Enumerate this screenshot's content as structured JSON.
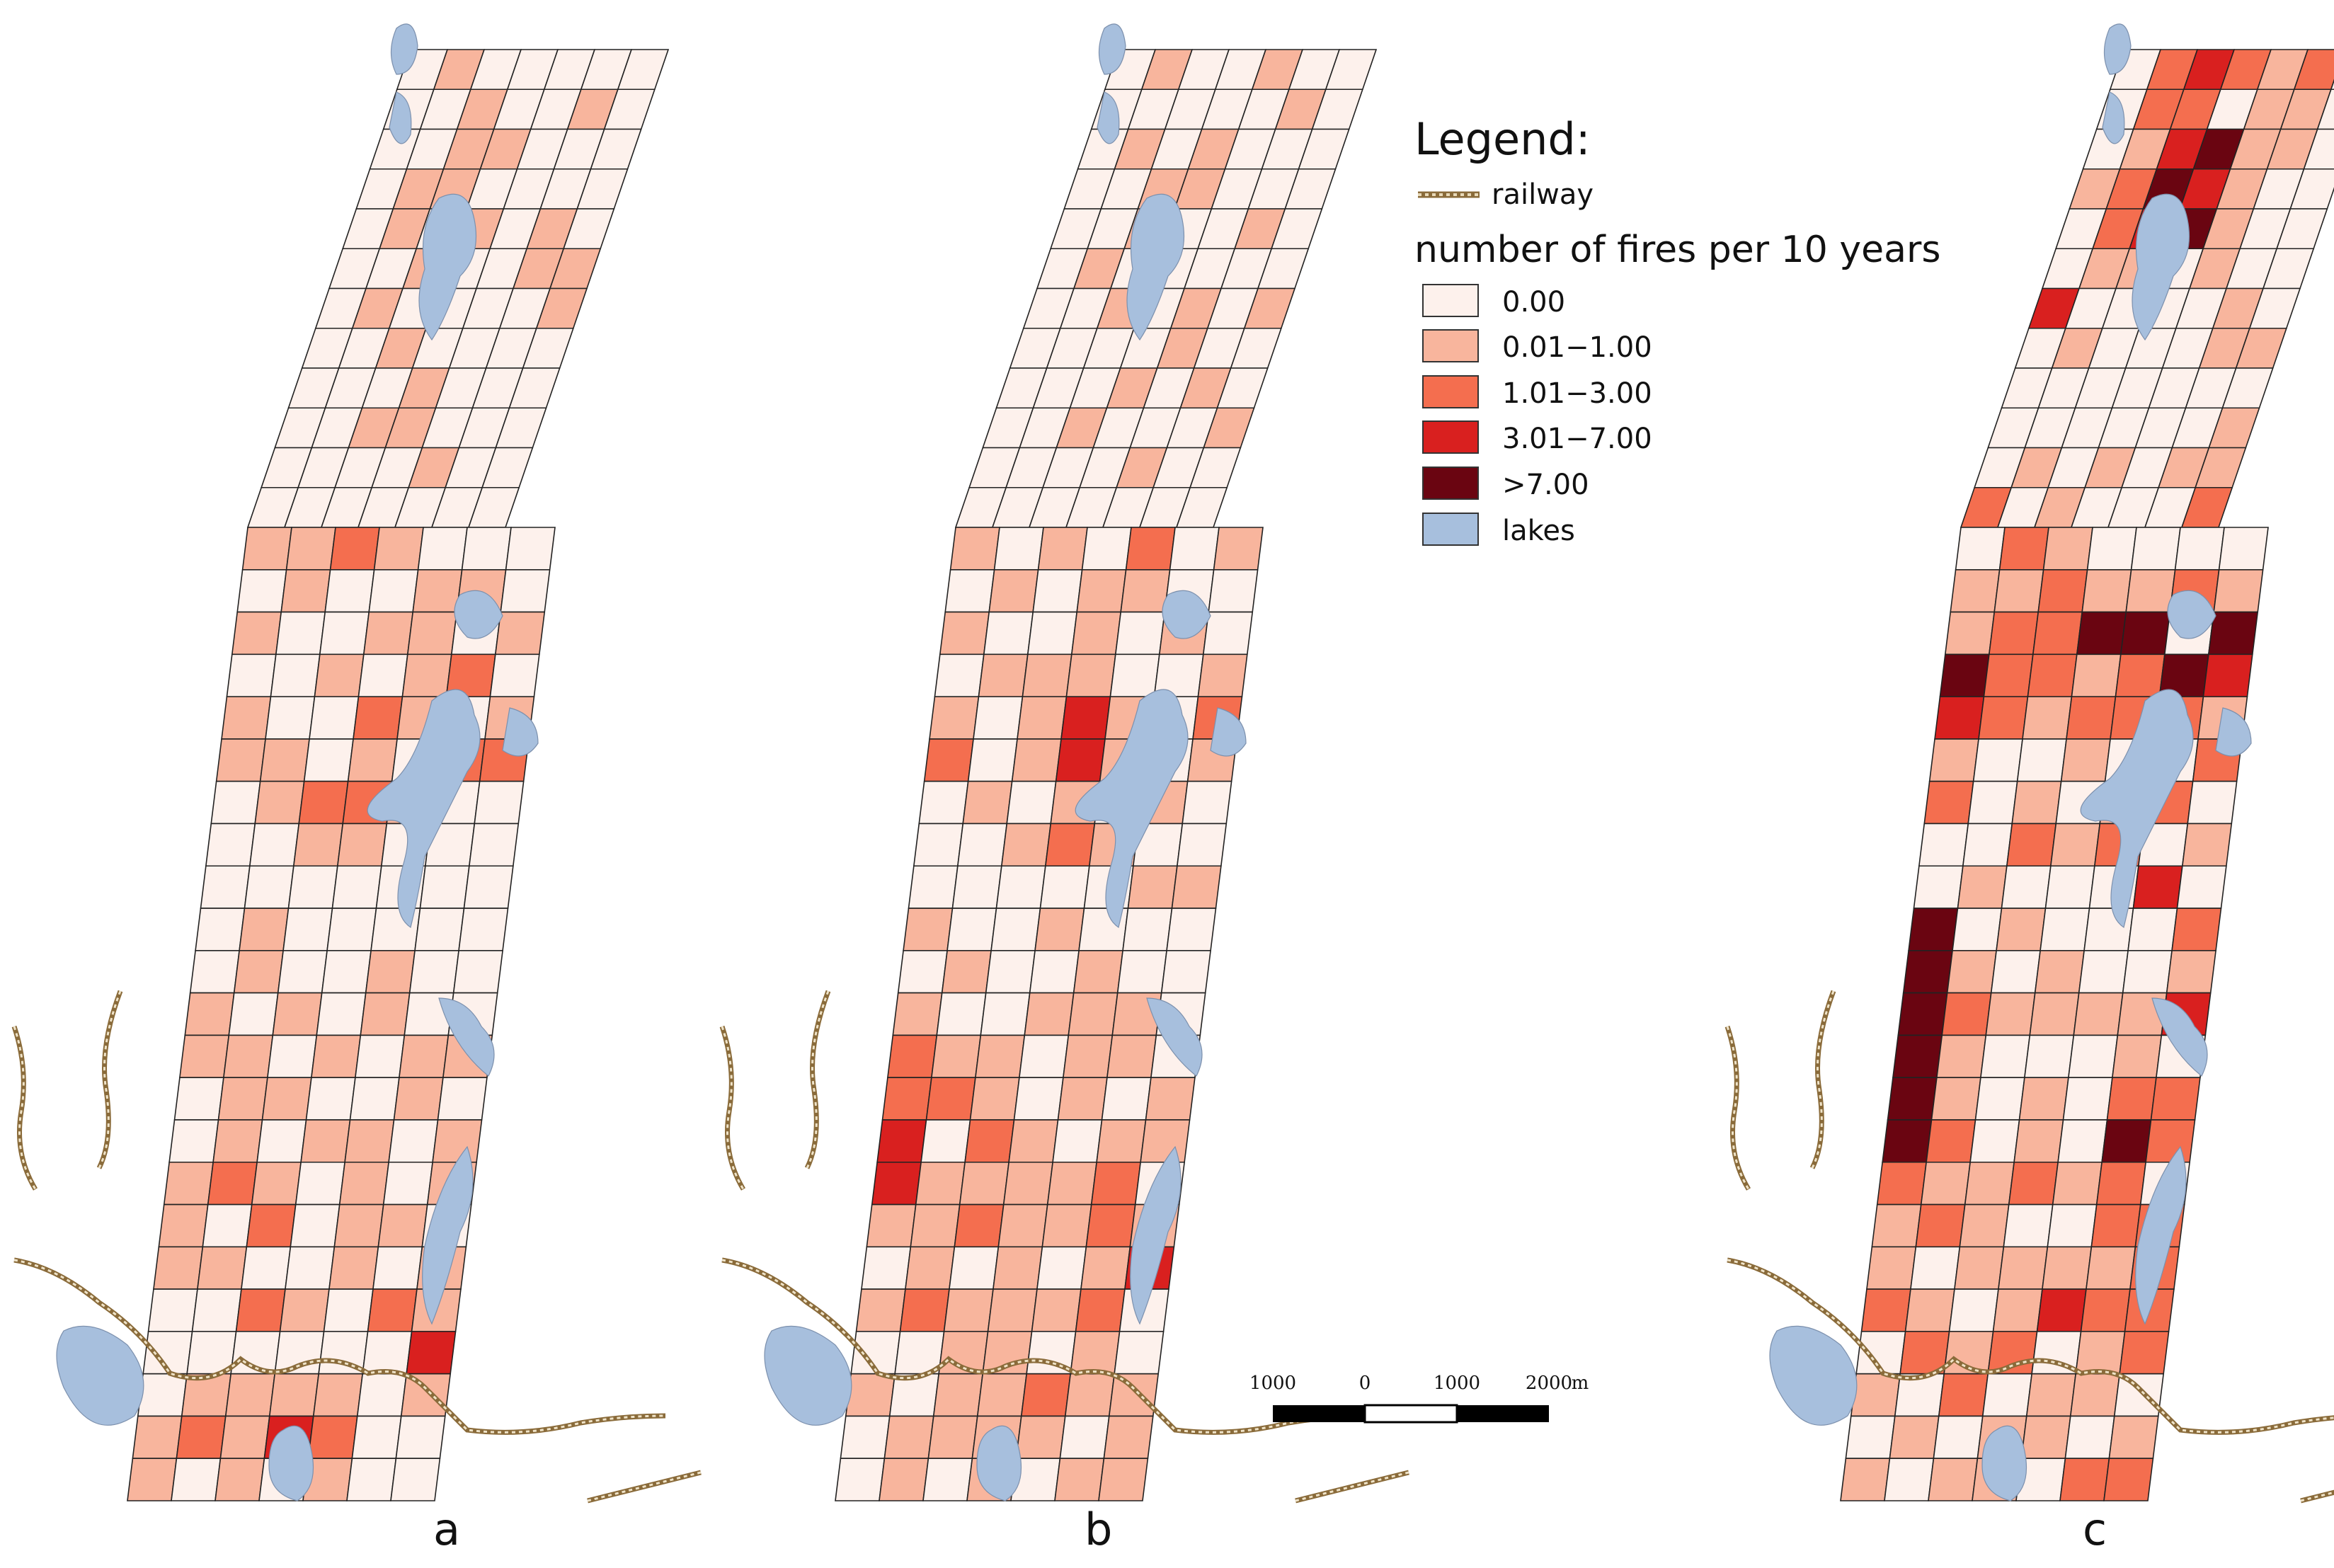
{
  "legend": {
    "title": "Legend:",
    "railway_label": "railway",
    "subtitle": "number of fires per 10 years",
    "classes": [
      {
        "label": "0.00",
        "color": "#fdf1ec"
      },
      {
        "label": "0.01−1.00",
        "color": "#f8b59d"
      },
      {
        "label": "1.01−3.00",
        "color": "#f46e4f"
      },
      {
        "label": "3.01−7.00",
        "color": "#d9201f"
      },
      {
        "label": ">7.00",
        "color": "#6a0511"
      }
    ],
    "lakes_label": "lakes",
    "lakes_color": "#a7bfdd",
    "railway_color": "#8a6b3a"
  },
  "scale_bar": {
    "labels": [
      "1000",
      "0",
      "1000",
      "2000"
    ],
    "unit": "m"
  },
  "panels": [
    {
      "label": "a",
      "rows": [
        "0100000",
        "0010010",
        "0011000",
        "0110000",
        "0101010",
        "0010011",
        "0100001",
        "0010000",
        "0001000",
        "0011000",
        "0000100",
        "0000000",
        "1121000",
        "0100110",
        "1001101",
        "0010120",
        "1002101",
        "1101022",
        "0122100",
        "0011000",
        "0000000",
        "0100000",
        "0100100",
        "1010100",
        "1101011",
        "0110010",
        "0101101",
        "1210101",
        "1020110",
        "1100101",
        "0021021",
        "0000003",
        "0111101",
        "1213200",
        "1010100"
      ]
    },
    {
      "label": "b",
      "rows": [
        "0100100",
        "0000010",
        "0101000",
        "0011000",
        "0010010",
        "0100000",
        "0010101",
        "0000100",
        "0001010",
        "0010001",
        "0000100",
        "0000000",
        "1010201",
        "0101100",
        "1001010",
        "0111001",
        "1013102",
        "2013101",
        "0101010",
        "0012100",
        "0000011",
        "1001000",
        "0100100",
        "1001110",
        "2110110",
        "2210101",
        "3021011",
        "3111120",
        "1121121",
        "0101013",
        "1211120",
        "0011010",
        "1011211",
        "0111101",
        "0101011"
      ]
    },
    {
      "label": "c",
      "rows": [
        "0232120",
        "0220110",
        "0134110",
        "1243100",
        "0234100",
        "0110100",
        "3000010",
        "0100011",
        "0000000",
        "0000001",
        "0101011",
        "2010002",
        "0210000",
        "1121121",
        "1224404",
        "4221243",
        "3212221",
        "1001002",
        "2010120",
        "0021201",
        "0100030",
        "4010002",
        "4101001",
        "4211113",
        "4100010",
        "4101022",
        "4201042",
        "2112120",
        "1210022",
        "1011112",
        "2101322",
        "0212012",
        "1020110",
        "0101101",
        "1011022"
      ]
    }
  ]
}
